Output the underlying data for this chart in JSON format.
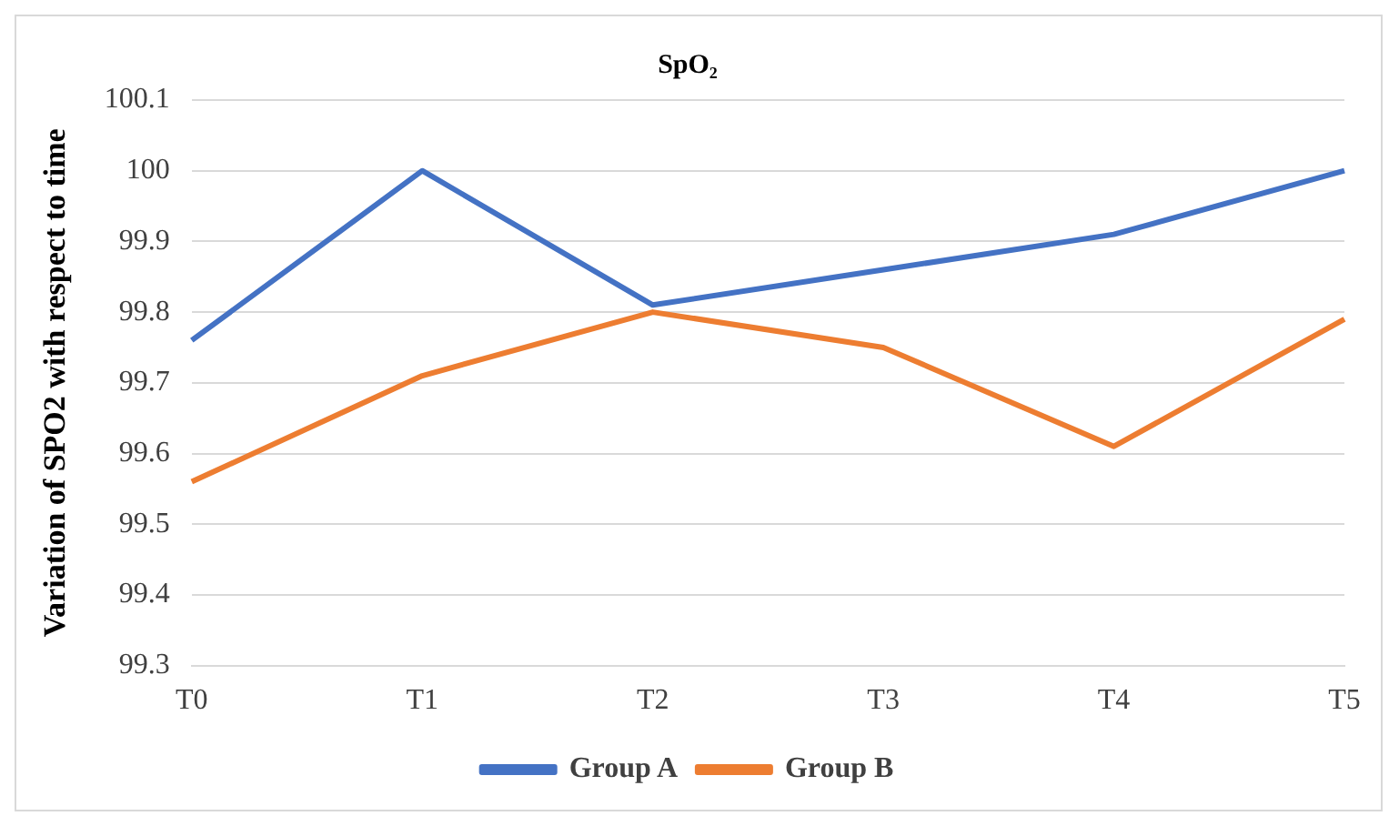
{
  "chart_data": {
    "type": "line",
    "title": "SpO₂",
    "ylabel": "Variation of SPO2 with respect to time",
    "categories": [
      "T0",
      "T1",
      "T2",
      "T3",
      "T4",
      "T5"
    ],
    "series": [
      {
        "name": "Group A",
        "color": "#4472c4",
        "values": [
          99.76,
          100.0,
          99.81,
          99.86,
          99.91,
          100.0
        ]
      },
      {
        "name": "Group B",
        "color": "#ed7d31",
        "values": [
          99.56,
          99.71,
          99.8,
          99.75,
          99.61,
          99.79
        ]
      }
    ],
    "ylim": [
      99.3,
      100.1
    ],
    "yticks": [
      99.3,
      99.4,
      99.5,
      99.6,
      99.7,
      99.8,
      99.9,
      100,
      100.1
    ],
    "grid": "y",
    "legend": "bottom",
    "marker": "none",
    "line_style": "solid"
  }
}
